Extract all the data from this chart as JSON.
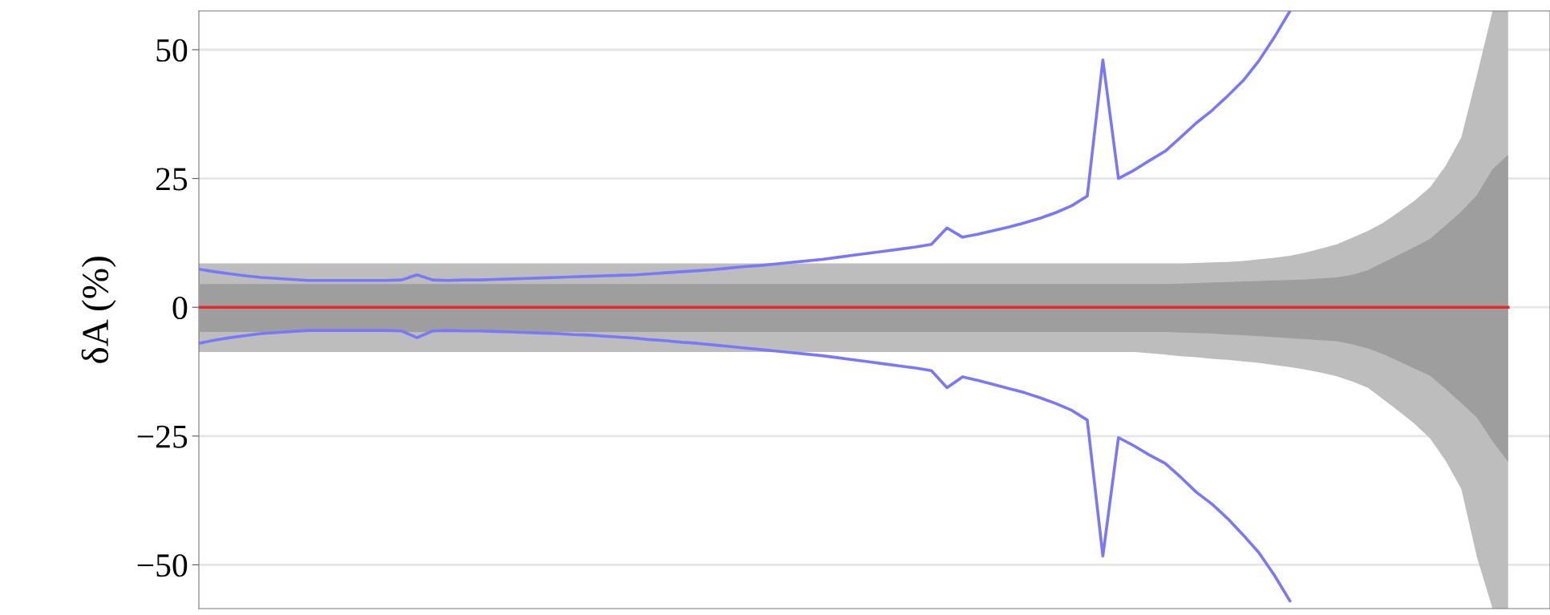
{
  "chart_data": {
    "type": "line",
    "ylabel": "δA (%)",
    "categories": [
      null,
      null,
      null,
      null,
      null,
      null,
      null,
      null,
      null,
      null,
      null,
      null,
      null,
      null,
      null,
      null,
      null,
      null,
      null,
      null,
      null,
      null,
      null,
      null,
      null,
      null,
      null,
      null,
      null,
      null,
      null,
      null,
      null,
      null,
      null,
      null,
      null,
      null,
      null,
      null,
      null,
      null,
      null,
      null,
      null,
      null,
      null,
      null,
      null,
      null,
      null,
      null,
      null,
      null,
      null,
      null,
      null,
      null,
      null,
      null,
      null,
      null,
      null,
      null,
      null,
      null,
      null,
      null,
      null,
      null,
      null,
      null,
      null,
      null,
      null,
      null,
      null,
      null,
      null,
      null,
      null,
      null,
      null,
      null,
      null
    ],
    "ylim": [
      -58.5,
      57.5
    ],
    "yticks": [
      {
        "value": -50,
        "label": "−50"
      },
      {
        "value": -25,
        "label": "−25"
      },
      0,
      25,
      50
    ],
    "grid": "y",
    "series": [
      {
        "type": "area",
        "color": "#bdbdbd",
        "values": [
          null,
          null,
          null,
          null,
          null,
          null,
          null,
          null,
          null,
          null,
          null,
          null,
          null,
          null,
          null,
          null,
          null,
          null,
          null,
          null,
          null,
          null,
          null,
          null,
          null,
          null,
          null,
          null,
          null,
          null,
          null,
          null,
          null,
          null,
          null,
          null,
          null,
          null,
          null,
          null,
          null,
          null,
          null,
          null,
          null,
          null,
          null,
          null,
          null,
          null,
          null,
          null,
          null,
          null,
          null,
          null,
          null,
          null,
          null,
          null,
          null,
          null,
          null,
          null,
          null,
          null,
          null,
          null,
          null,
          null,
          null,
          null,
          null,
          null,
          null,
          null,
          null,
          null,
          null,
          null,
          null,
          null,
          null,
          null,
          null
        ],
        "lower": [
          -8.7,
          -8.7,
          -8.7,
          -8.7,
          -8.7,
          -8.7,
          -8.7,
          -8.7,
          -8.7,
          -8.7,
          -8.7,
          -8.7,
          -8.7,
          -8.7,
          -8.7,
          -8.7,
          -8.7,
          -8.7,
          -8.7,
          -8.7,
          -8.7,
          -8.7,
          -8.7,
          -8.7,
          -8.7,
          -8.7,
          -8.7,
          -8.7,
          -8.7,
          -8.7,
          -8.7,
          -8.7,
          -8.7,
          -8.7,
          -8.7,
          -8.7,
          -8.7,
          -8.7,
          -8.7,
          -8.7,
          -8.7,
          -8.7,
          -8.7,
          -8.7,
          -8.7,
          -8.7,
          -8.7,
          -8.7,
          -8.7,
          -8.7,
          -8.7,
          -8.7,
          -8.7,
          -8.7,
          -8.7,
          -8.7,
          -8.7,
          -8.7,
          -8.7,
          -8.7,
          -8.7,
          -8.9,
          -9.2,
          -9.5,
          -9.7,
          -10.0,
          -10.2,
          -10.5,
          -10.8,
          -11.2,
          -11.6,
          -12.1,
          -12.7,
          -13.4,
          -14.4,
          -15.6,
          -17.9,
          -20.2,
          -22.6,
          -25.5,
          -29.8,
          -35.3,
          -48.5,
          -58.5,
          -58.5
        ],
        "upper": [
          8.5,
          8.5,
          8.5,
          8.5,
          8.5,
          8.5,
          8.5,
          8.5,
          8.5,
          8.5,
          8.5,
          8.5,
          8.5,
          8.5,
          8.5,
          8.5,
          8.5,
          8.5,
          8.5,
          8.5,
          8.5,
          8.5,
          8.5,
          8.5,
          8.5,
          8.5,
          8.5,
          8.5,
          8.5,
          8.5,
          8.5,
          8.5,
          8.5,
          8.5,
          8.5,
          8.5,
          8.5,
          8.5,
          8.5,
          8.5,
          8.5,
          8.5,
          8.5,
          8.5,
          8.5,
          8.5,
          8.5,
          8.5,
          8.5,
          8.5,
          8.5,
          8.5,
          8.5,
          8.5,
          8.5,
          8.5,
          8.5,
          8.5,
          8.5,
          8.5,
          8.5,
          8.5,
          8.5,
          8.5,
          8.6,
          8.7,
          8.8,
          9.0,
          9.3,
          9.6,
          10.0,
          10.6,
          11.4,
          12.2,
          13.5,
          14.8,
          16.4,
          18.5,
          20.7,
          23.3,
          27.5,
          33.0,
          45.0,
          57.5,
          57.5
        ]
      },
      {
        "type": "area",
        "color": "#9e9e9e",
        "values": [
          null,
          null,
          null,
          null,
          null,
          null,
          null,
          null,
          null,
          null,
          null,
          null,
          null,
          null,
          null,
          null,
          null,
          null,
          null,
          null,
          null,
          null,
          null,
          null,
          null,
          null,
          null,
          null,
          null,
          null,
          null,
          null,
          null,
          null,
          null,
          null,
          null,
          null,
          null,
          null,
          null,
          null,
          null,
          null,
          null,
          null,
          null,
          null,
          null,
          null,
          null,
          null,
          null,
          null,
          null,
          null,
          null,
          null,
          null,
          null,
          null,
          null,
          null,
          null,
          null,
          null,
          null,
          null,
          null,
          null,
          null,
          null,
          null,
          null,
          null,
          null,
          null,
          null,
          null,
          null,
          null,
          null,
          null,
          null,
          null
        ],
        "lower": [
          -4.8,
          -4.8,
          -4.8,
          -4.8,
          -4.8,
          -4.8,
          -4.8,
          -4.8,
          -4.8,
          -4.8,
          -4.8,
          -4.8,
          -4.8,
          -4.8,
          -4.8,
          -4.8,
          -4.8,
          -4.8,
          -4.8,
          -4.8,
          -4.8,
          -4.8,
          -4.8,
          -4.8,
          -4.8,
          -4.8,
          -4.8,
          -4.8,
          -4.8,
          -4.8,
          -4.8,
          -4.8,
          -4.8,
          -4.8,
          -4.8,
          -4.8,
          -4.8,
          -4.8,
          -4.8,
          -4.8,
          -4.8,
          -4.8,
          -4.8,
          -4.8,
          -4.8,
          -4.8,
          -4.8,
          -4.8,
          -4.8,
          -4.8,
          -4.8,
          -4.8,
          -4.8,
          -4.8,
          -4.8,
          -4.8,
          -4.8,
          -4.8,
          -4.8,
          -4.8,
          -4.8,
          -4.8,
          -4.8,
          -4.9,
          -5.0,
          -5.1,
          -5.3,
          -5.4,
          -5.6,
          -5.8,
          -6.0,
          -6.2,
          -6.4,
          -6.6,
          -7.2,
          -8.0,
          -9.1,
          -10.5,
          -11.9,
          -13.3,
          -15.9,
          -18.6,
          -21.4,
          -26.0,
          -30.0
        ],
        "upper": [
          4.5,
          4.5,
          4.5,
          4.5,
          4.5,
          4.5,
          4.5,
          4.5,
          4.5,
          4.5,
          4.5,
          4.5,
          4.5,
          4.5,
          4.5,
          4.5,
          4.5,
          4.5,
          4.5,
          4.5,
          4.5,
          4.5,
          4.5,
          4.5,
          4.5,
          4.5,
          4.5,
          4.5,
          4.5,
          4.5,
          4.5,
          4.5,
          4.5,
          4.5,
          4.5,
          4.5,
          4.5,
          4.5,
          4.5,
          4.5,
          4.5,
          4.5,
          4.5,
          4.5,
          4.5,
          4.5,
          4.5,
          4.5,
          4.5,
          4.5,
          4.5,
          4.5,
          4.5,
          4.5,
          4.5,
          4.5,
          4.5,
          4.5,
          4.5,
          4.5,
          4.5,
          4.5,
          4.5,
          4.6,
          4.7,
          4.8,
          4.9,
          5.0,
          5.1,
          5.2,
          5.3,
          5.4,
          5.6,
          5.8,
          6.3,
          7.2,
          8.7,
          10.2,
          11.7,
          13.3,
          15.9,
          18.6,
          21.8,
          26.8,
          29.6
        ]
      },
      {
        "color": "#7878f8",
        "values": [
          7.4,
          6.9,
          6.5,
          6.1,
          5.8,
          5.6,
          5.4,
          5.2,
          5.2,
          5.2,
          5.2,
          5.2,
          5.2,
          5.3,
          6.3,
          5.3,
          5.2,
          5.3,
          5.3,
          5.4,
          5.5,
          5.6,
          5.7,
          5.8,
          5.9,
          6.0,
          6.1,
          6.2,
          6.3,
          6.5,
          6.7,
          6.9,
          7.1,
          7.3,
          7.6,
          7.9,
          8.1,
          8.4,
          8.7,
          9.0,
          9.3,
          9.7,
          10.1,
          10.5,
          10.9,
          11.3,
          11.7,
          12.2,
          15.4,
          13.6,
          14.2,
          14.9,
          15.6,
          16.4,
          17.3,
          18.4,
          19.7,
          21.6,
          48,
          25.0,
          26.6,
          28.5,
          30.3,
          33.0,
          35.8,
          38.2,
          41.0,
          44.0,
          47.8,
          52.4,
          57.5,
          null,
          null,
          null,
          null,
          null,
          null,
          null,
          null,
          null,
          null,
          null,
          null,
          null,
          null
        ]
      },
      {
        "color": "#7878f8",
        "values": [
          -7.0,
          -6.4,
          -5.9,
          -5.5,
          -5.1,
          -4.9,
          -4.7,
          -4.5,
          -4.5,
          -4.5,
          -4.5,
          -4.5,
          -4.5,
          -4.6,
          -5.9,
          -4.6,
          -4.5,
          -4.6,
          -4.6,
          -4.7,
          -4.8,
          -4.9,
          -5.0,
          -5.1,
          -5.3,
          -5.4,
          -5.6,
          -5.8,
          -6.0,
          -6.3,
          -6.5,
          -6.8,
          -7.0,
          -7.3,
          -7.6,
          -7.9,
          -8.2,
          -8.5,
          -8.8,
          -9.1,
          -9.4,
          -9.8,
          -10.2,
          -10.6,
          -11.0,
          -11.4,
          -11.8,
          -12.3,
          -15.6,
          -13.5,
          -14.2,
          -15.0,
          -15.8,
          -16.6,
          -17.6,
          -18.7,
          -20.0,
          -21.9,
          -48.3,
          -25.3,
          -26.9,
          -28.7,
          -30.3,
          -33.0,
          -35.9,
          -38.2,
          -41.0,
          -44.2,
          -47.6,
          -52.0,
          -57.0,
          null,
          null,
          null,
          null,
          null,
          null,
          null,
          null,
          null,
          null,
          null,
          null,
          null,
          null
        ]
      },
      {
        "color": "#e8282a",
        "values": [
          0,
          0,
          0,
          0,
          0,
          0,
          0,
          0,
          0,
          0,
          0,
          0,
          0,
          0,
          0,
          0,
          0,
          0,
          0,
          0,
          0,
          0,
          0,
          0,
          0,
          0,
          0,
          0,
          0,
          0,
          0,
          0,
          0,
          0,
          0,
          0,
          0,
          0,
          0,
          0,
          0,
          0,
          0,
          0,
          0,
          0,
          0,
          0,
          0,
          0,
          0,
          0,
          0,
          0,
          0,
          0,
          0,
          0,
          0,
          0,
          0,
          0,
          0,
          0,
          0,
          0,
          0,
          0,
          0,
          0,
          0,
          0,
          0,
          0,
          0,
          0,
          0,
          0,
          0,
          0,
          0,
          0,
          0,
          0,
          0
        ]
      }
    ]
  }
}
